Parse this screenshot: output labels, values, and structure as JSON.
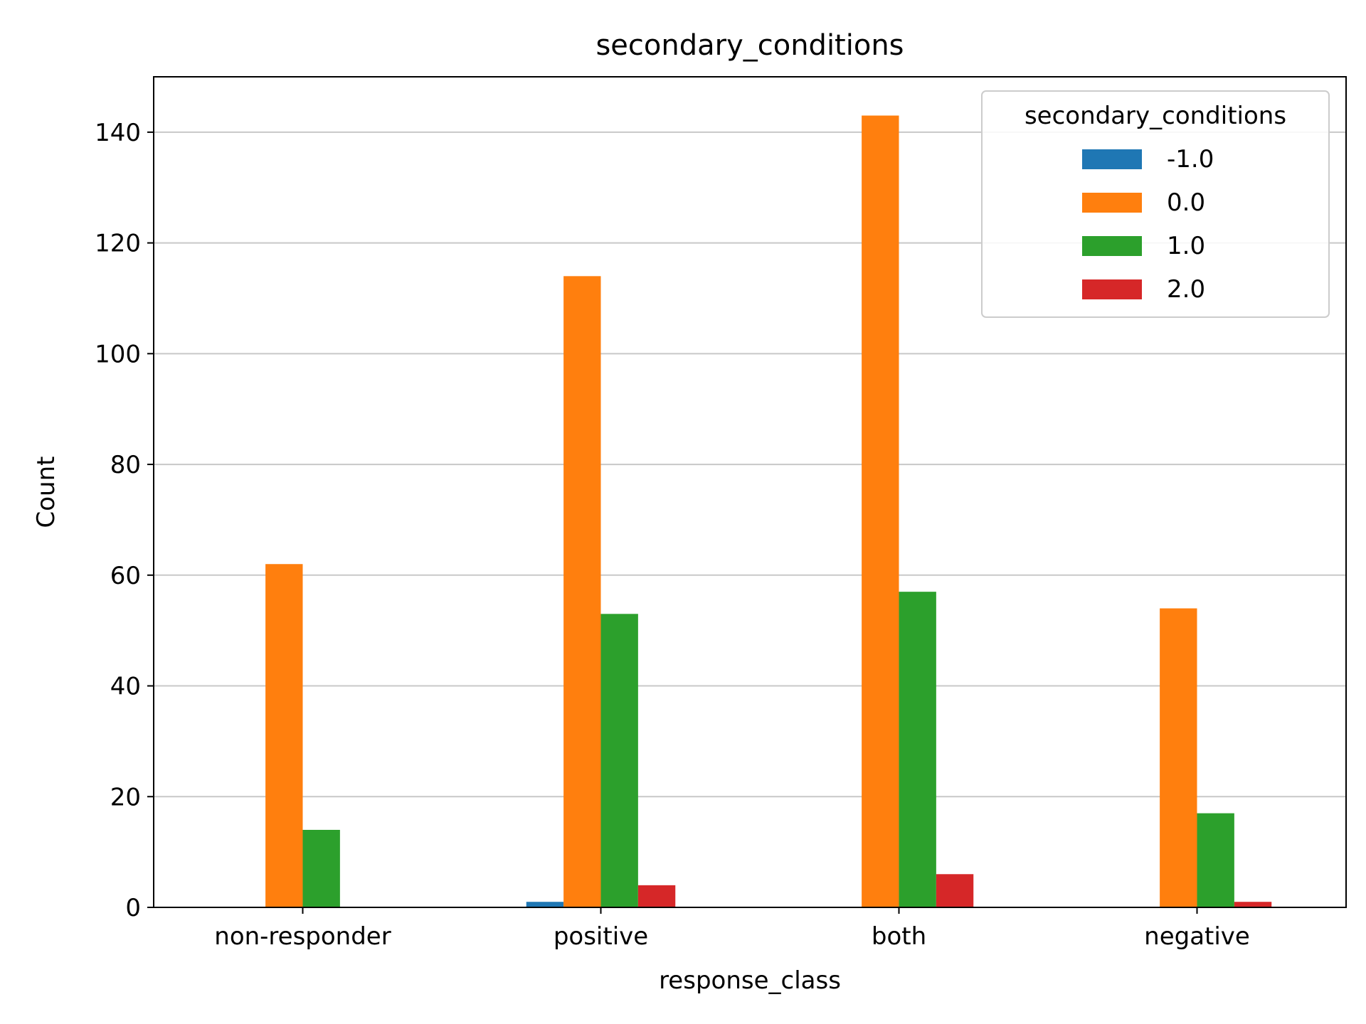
{
  "chart_data": {
    "type": "bar",
    "title": "secondary_conditions",
    "xlabel": "response_class",
    "ylabel": "Count",
    "categories": [
      "non-responder",
      "positive",
      "both",
      "negative"
    ],
    "ylim": [
      0,
      150
    ],
    "yticks": [
      0,
      20,
      40,
      60,
      80,
      100,
      120,
      140
    ],
    "grid": "y",
    "legend": {
      "title": "secondary_conditions",
      "placement": "top-right"
    },
    "series": [
      {
        "name": "-1.0",
        "color": "#1f77b4",
        "values": [
          0,
          1,
          0,
          0
        ]
      },
      {
        "name": "0.0",
        "color": "#ff7f0e",
        "values": [
          62,
          114,
          143,
          54
        ]
      },
      {
        "name": "1.0",
        "color": "#2ca02c",
        "values": [
          14,
          53,
          57,
          17
        ]
      },
      {
        "name": "2.0",
        "color": "#d62728",
        "values": [
          0,
          4,
          6,
          1
        ]
      }
    ]
  }
}
